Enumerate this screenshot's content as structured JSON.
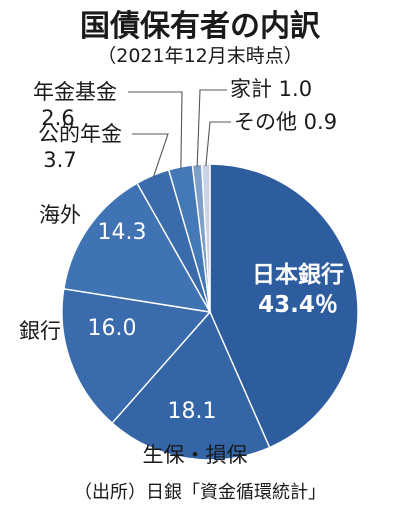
{
  "chart_data": {
    "type": "pie",
    "title": "国債保有者の内訳",
    "subtitle": "（2021年12月末時点）",
    "source": "（出所）日銀「資金循環統計」",
    "slices": [
      {
        "label": "日本銀行",
        "value": 43.4,
        "value_text": "43.4％",
        "color": "#2d5d9e"
      },
      {
        "label": "生保・損保",
        "value": 18.1,
        "value_text": "18.1",
        "color": "#3465a6"
      },
      {
        "label": "銀行",
        "value": 16.0,
        "value_text": "16.0",
        "color": "#3a6bac"
      },
      {
        "label": "海外",
        "value": 14.3,
        "value_text": "14.3",
        "color": "#4073b4"
      },
      {
        "label": "公的年金",
        "value": 3.7,
        "value_text": "3.7",
        "color": "#3a6bac"
      },
      {
        "label": "年金基金",
        "value": 2.6,
        "value_text": "2.6",
        "color": "#4578b7"
      },
      {
        "label": "家計",
        "value": 1.0,
        "value_text": "1.0",
        "color": "#7f9fc9"
      },
      {
        "label": "その他",
        "value": 0.9,
        "value_text": "0.9",
        "color": "#c9d5e6"
      }
    ]
  }
}
